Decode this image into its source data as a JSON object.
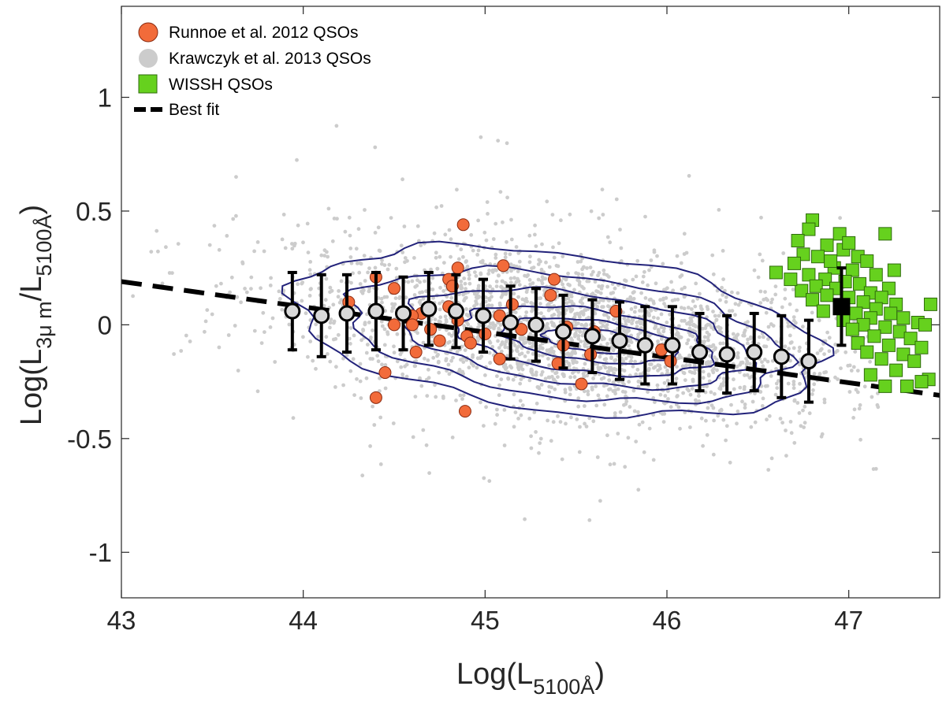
{
  "chart_data": {
    "type": "scatter",
    "xlabel": {
      "prefix": "Log(L",
      "sub": "5100Å",
      "suffix": ")"
    },
    "ylabel": {
      "prefix": "Log(L",
      "sub1": "3μ m",
      "mid": "/L",
      "sub2": "5100Å",
      "suffix": ")"
    },
    "xlim": [
      43,
      47.5
    ],
    "ylim": [
      -1.2,
      1.4
    ],
    "xticks": [
      43,
      44,
      45,
      46,
      47
    ],
    "yticks": [
      1,
      0.5,
      0,
      -0.5,
      -1
    ],
    "ytick_labels": [
      "1",
      "0.5",
      "0",
      "-0.5",
      "-1"
    ],
    "legend": {
      "placement": "top-left",
      "entries": [
        {
          "label": "Runnoe et al. 2012 QSOs",
          "marker": "circle",
          "color": "#F26B3A"
        },
        {
          "label": "Krawczyk et al. 2013 QSOs",
          "marker": "circle",
          "color": "#CCCCCC"
        },
        {
          "label": "WISSH QSOs",
          "marker": "square",
          "color": "#66D11E"
        },
        {
          "label": "Best fit",
          "marker": "dashed-line",
          "color": "#000000"
        }
      ]
    },
    "colors": {
      "runnoe": "#F26B3A",
      "krawczyk": "#CCCCCC",
      "wissh": "#66D11E",
      "contour": "#22227A",
      "fit": "#000000",
      "binned": "#000000"
    },
    "best_fit": {
      "x": [
        43,
        47.5
      ],
      "y": [
        0.19,
        -0.31
      ]
    },
    "binned_means": [
      {
        "x": 43.94,
        "y": 0.06,
        "err": 0.17
      },
      {
        "x": 44.1,
        "y": 0.04,
        "err": 0.18
      },
      {
        "x": 44.24,
        "y": 0.05,
        "err": 0.17
      },
      {
        "x": 44.4,
        "y": 0.06,
        "err": 0.17
      },
      {
        "x": 44.55,
        "y": 0.05,
        "err": 0.16
      },
      {
        "x": 44.69,
        "y": 0.07,
        "err": 0.16
      },
      {
        "x": 44.84,
        "y": 0.06,
        "err": 0.16
      },
      {
        "x": 44.99,
        "y": 0.04,
        "err": 0.16
      },
      {
        "x": 45.14,
        "y": 0.01,
        "err": 0.16
      },
      {
        "x": 45.28,
        "y": 0.0,
        "err": 0.16
      },
      {
        "x": 45.43,
        "y": -0.03,
        "err": 0.16
      },
      {
        "x": 45.59,
        "y": -0.05,
        "err": 0.16
      },
      {
        "x": 45.74,
        "y": -0.07,
        "err": 0.17
      },
      {
        "x": 45.88,
        "y": -0.09,
        "err": 0.17
      },
      {
        "x": 46.03,
        "y": -0.09,
        "err": 0.17
      },
      {
        "x": 46.18,
        "y": -0.12,
        "err": 0.17
      },
      {
        "x": 46.33,
        "y": -0.13,
        "err": 0.17
      },
      {
        "x": 46.48,
        "y": -0.12,
        "err": 0.17
      },
      {
        "x": 46.63,
        "y": -0.14,
        "err": 0.18
      },
      {
        "x": 46.78,
        "y": -0.16,
        "err": 0.18
      }
    ],
    "wissh_mean": {
      "x": 46.96,
      "y": 0.08,
      "err": 0.17
    },
    "runnoe": [
      {
        "x": 44.88,
        "y": 0.44
      },
      {
        "x": 44.85,
        "y": 0.25
      },
      {
        "x": 45.1,
        "y": 0.26
      },
      {
        "x": 44.4,
        "y": 0.21
      },
      {
        "x": 44.8,
        "y": 0.2
      },
      {
        "x": 44.82,
        "y": 0.17
      },
      {
        "x": 45.38,
        "y": 0.2
      },
      {
        "x": 44.5,
        "y": 0.16
      },
      {
        "x": 45.36,
        "y": 0.13
      },
      {
        "x": 45.15,
        "y": 0.09
      },
      {
        "x": 44.8,
        "y": 0.08
      },
      {
        "x": 44.25,
        "y": 0.1
      },
      {
        "x": 44.65,
        "y": 0.05
      },
      {
        "x": 44.6,
        "y": 0.04
      },
      {
        "x": 45.08,
        "y": 0.04
      },
      {
        "x": 44.85,
        "y": 0.02
      },
      {
        "x": 44.5,
        "y": 0.0
      },
      {
        "x": 44.6,
        "y": 0.0
      },
      {
        "x": 45.45,
        "y": -0.01
      },
      {
        "x": 44.7,
        "y": -0.02
      },
      {
        "x": 45.0,
        "y": -0.04
      },
      {
        "x": 44.9,
        "y": -0.05
      },
      {
        "x": 45.43,
        "y": -0.09
      },
      {
        "x": 44.75,
        "y": -0.07
      },
      {
        "x": 44.92,
        "y": -0.08
      },
      {
        "x": 44.62,
        "y": -0.12
      },
      {
        "x": 45.97,
        "y": -0.11
      },
      {
        "x": 45.58,
        "y": -0.13
      },
      {
        "x": 45.08,
        "y": -0.15
      },
      {
        "x": 46.02,
        "y": -0.16
      },
      {
        "x": 45.4,
        "y": -0.17
      },
      {
        "x": 44.45,
        "y": -0.21
      },
      {
        "x": 45.53,
        "y": -0.26
      },
      {
        "x": 44.4,
        "y": -0.32
      },
      {
        "x": 44.89,
        "y": -0.38
      },
      {
        "x": 45.72,
        "y": 0.06
      },
      {
        "x": 45.6,
        "y": -0.03
      },
      {
        "x": 45.2,
        "y": -0.02
      }
    ],
    "wissh": [
      {
        "x": 46.8,
        "y": 0.46
      },
      {
        "x": 46.78,
        "y": 0.42
      },
      {
        "x": 46.95,
        "y": 0.4
      },
      {
        "x": 47.2,
        "y": 0.4
      },
      {
        "x": 46.72,
        "y": 0.37
      },
      {
        "x": 46.88,
        "y": 0.35
      },
      {
        "x": 46.97,
        "y": 0.33
      },
      {
        "x": 46.75,
        "y": 0.31
      },
      {
        "x": 46.83,
        "y": 0.3
      },
      {
        "x": 47.05,
        "y": 0.3
      },
      {
        "x": 47.1,
        "y": 0.28
      },
      {
        "x": 46.7,
        "y": 0.27
      },
      {
        "x": 46.92,
        "y": 0.25
      },
      {
        "x": 47.02,
        "y": 0.24
      },
      {
        "x": 46.6,
        "y": 0.23
      },
      {
        "x": 46.78,
        "y": 0.22
      },
      {
        "x": 47.15,
        "y": 0.22
      },
      {
        "x": 46.87,
        "y": 0.2
      },
      {
        "x": 46.98,
        "y": 0.19
      },
      {
        "x": 47.06,
        "y": 0.18
      },
      {
        "x": 46.82,
        "y": 0.17
      },
      {
        "x": 46.93,
        "y": 0.16
      },
      {
        "x": 47.22,
        "y": 0.16
      },
      {
        "x": 46.74,
        "y": 0.15
      },
      {
        "x": 47.12,
        "y": 0.14
      },
      {
        "x": 46.88,
        "y": 0.13
      },
      {
        "x": 47.0,
        "y": 0.12
      },
      {
        "x": 47.18,
        "y": 0.12
      },
      {
        "x": 46.8,
        "y": 0.11
      },
      {
        "x": 47.08,
        "y": 0.1
      },
      {
        "x": 47.26,
        "y": 0.09
      },
      {
        "x": 46.95,
        "y": 0.08
      },
      {
        "x": 47.15,
        "y": 0.07
      },
      {
        "x": 47.45,
        "y": 0.09
      },
      {
        "x": 46.86,
        "y": 0.06
      },
      {
        "x": 47.04,
        "y": 0.05
      },
      {
        "x": 47.23,
        "y": 0.05
      },
      {
        "x": 47.12,
        "y": 0.03
      },
      {
        "x": 46.97,
        "y": 0.02
      },
      {
        "x": 47.3,
        "y": 0.03
      },
      {
        "x": 47.38,
        "y": 0.01
      },
      {
        "x": 47.08,
        "y": 0.0
      },
      {
        "x": 47.2,
        "y": -0.01
      },
      {
        "x": 47.42,
        "y": 0.0
      },
      {
        "x": 47.02,
        "y": -0.02
      },
      {
        "x": 47.28,
        "y": -0.03
      },
      {
        "x": 47.14,
        "y": -0.05
      },
      {
        "x": 47.34,
        "y": -0.06
      },
      {
        "x": 47.05,
        "y": -0.08
      },
      {
        "x": 47.22,
        "y": -0.09
      },
      {
        "x": 47.4,
        "y": -0.1
      },
      {
        "x": 47.1,
        "y": -0.12
      },
      {
        "x": 47.3,
        "y": -0.13
      },
      {
        "x": 47.18,
        "y": -0.15
      },
      {
        "x": 47.36,
        "y": -0.16
      },
      {
        "x": 47.26,
        "y": -0.2
      },
      {
        "x": 47.12,
        "y": -0.22
      },
      {
        "x": 47.44,
        "y": -0.24
      },
      {
        "x": 47.2,
        "y": -0.27
      },
      {
        "x": 47.32,
        "y": -0.27
      },
      {
        "x": 47.4,
        "y": -0.25
      },
      {
        "x": 46.9,
        "y": 0.28
      },
      {
        "x": 47.0,
        "y": 0.36
      },
      {
        "x": 46.68,
        "y": 0.2
      },
      {
        "x": 47.25,
        "y": 0.24
      }
    ],
    "contours": [
      {
        "cx": 45.4,
        "cy": -0.03,
        "rx": 1.45,
        "ry": 0.35,
        "tilt": -0.09
      },
      {
        "cx": 45.45,
        "cy": -0.05,
        "rx": 1.2,
        "ry": 0.27,
        "tilt": -0.09
      },
      {
        "cx": 45.5,
        "cy": -0.06,
        "rx": 0.95,
        "ry": 0.2,
        "tilt": -0.09
      },
      {
        "cx": 45.55,
        "cy": -0.07,
        "rx": 0.7,
        "ry": 0.14,
        "tilt": -0.09
      },
      {
        "cx": 45.58,
        "cy": -0.07,
        "rx": 0.48,
        "ry": 0.09,
        "tilt": -0.09
      },
      {
        "cx": 45.6,
        "cy": -0.07,
        "rx": 0.28,
        "ry": 0.05,
        "tilt": -0.09
      }
    ],
    "krawczyk_cloud": {
      "cx": 45.45,
      "cy": -0.03,
      "sx": 0.75,
      "sy": 0.17,
      "slope": -0.1
    }
  }
}
